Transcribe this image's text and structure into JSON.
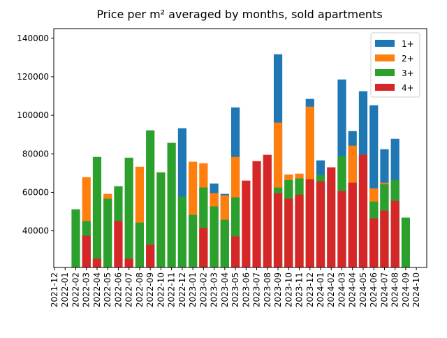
{
  "chart_data": {
    "type": "bar",
    "title": "Price per m² averaged by months, sold apartments",
    "categories": [
      "2021-12",
      "2022-01",
      "2022-02",
      "2022-03",
      "2022-04",
      "2022-05",
      "2022-06",
      "2022-07",
      "2022-08",
      "2022-09",
      "2022-10",
      "2022-11",
      "2022-12",
      "2023-01",
      "2023-02",
      "2023-03",
      "2023-04",
      "2023-05",
      "2023-06",
      "2023-07",
      "2023-08",
      "2023-09",
      "2023-10",
      "2023-11",
      "2023-12",
      "2024-01",
      "2024-02",
      "2024-03",
      "2024-04",
      "2024-05",
      "2024-06",
      "2024-07",
      "2024-08",
      "2024-09",
      "2024-10"
    ],
    "series": [
      {
        "name": "1+",
        "color": "#1f77b4",
        "values": [
          null,
          null,
          null,
          null,
          null,
          null,
          null,
          null,
          null,
          null,
          null,
          null,
          93300,
          null,
          null,
          64600,
          59200,
          104100,
          null,
          null,
          null,
          131700,
          null,
          null,
          108500,
          76600,
          null,
          118600,
          91800,
          112500,
          105200,
          82400,
          87800,
          null,
          null
        ]
      },
      {
        "name": "2+",
        "color": "#ff7f0e",
        "values": [
          null,
          null,
          null,
          67900,
          null,
          59200,
          null,
          null,
          73300,
          null,
          null,
          null,
          null,
          75900,
          75100,
          59600,
          58500,
          78400,
          null,
          null,
          null,
          96200,
          69300,
          69700,
          104500,
          null,
          null,
          null,
          84200,
          null,
          62100,
          65000,
          null,
          null,
          null
        ]
      },
      {
        "name": "3+",
        "color": "#2ca02c",
        "values": [
          null,
          null,
          51200,
          45100,
          78400,
          56700,
          63200,
          78000,
          44300,
          92200,
          70400,
          85700,
          57800,
          48300,
          62500,
          52700,
          45800,
          57400,
          null,
          null,
          null,
          62500,
          66400,
          67200,
          null,
          69000,
          null,
          78800,
          null,
          null,
          55200,
          64300,
          66400,
          46900,
          null
        ]
      },
      {
        "name": "4+",
        "color": "#d62728",
        "values": [
          null,
          null,
          null,
          37500,
          25500,
          null,
          45100,
          25500,
          null,
          32800,
          null,
          null,
          null,
          null,
          41400,
          null,
          null,
          37100,
          66100,
          76200,
          79500,
          59600,
          56700,
          58800,
          66800,
          65700,
          73000,
          60700,
          65000,
          79500,
          46500,
          50500,
          55600,
          null,
          null
        ]
      }
    ],
    "ylim": [
      21000,
      145000
    ],
    "yticks": [
      40000,
      60000,
      80000,
      100000,
      120000,
      140000
    ],
    "legend": "upper right"
  }
}
